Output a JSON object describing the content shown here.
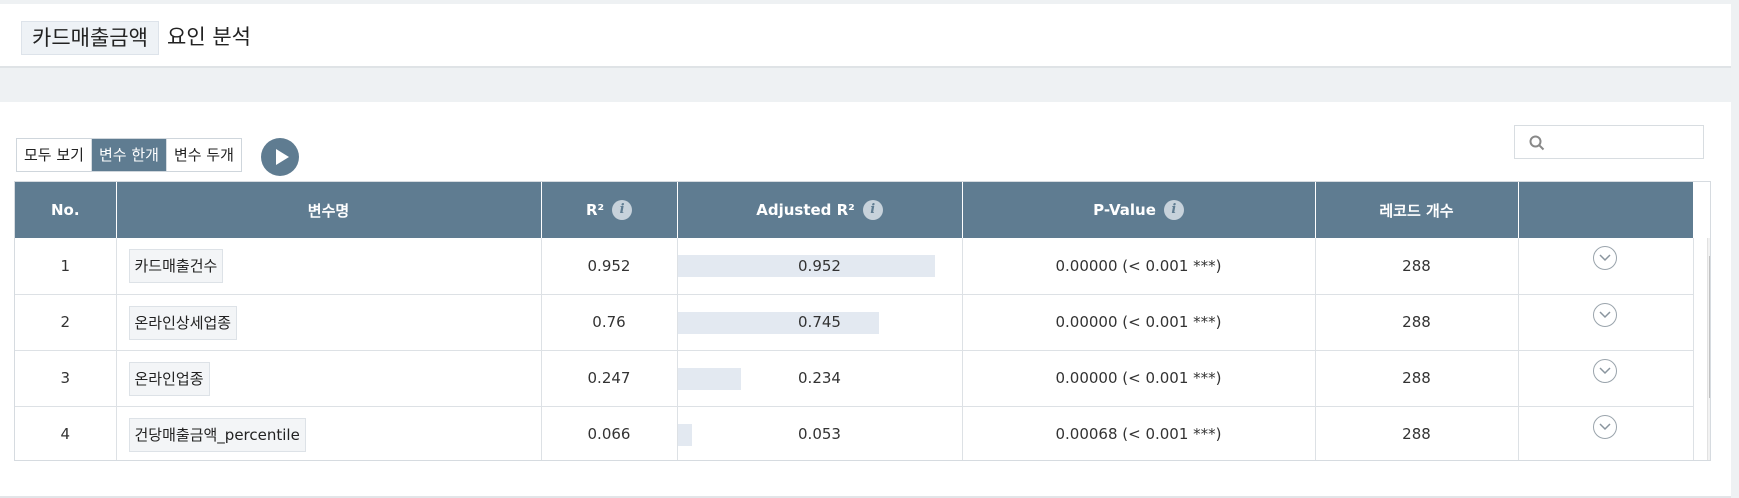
{
  "header": {
    "title_chip": "카드매출금액",
    "title_rest": "요인 분석"
  },
  "toolbar": {
    "segments": [
      {
        "label": "모두 보기",
        "active": false
      },
      {
        "label": "변수 한개",
        "active": true
      },
      {
        "label": "변수 두개",
        "active": false
      }
    ],
    "play_icon": "play-icon"
  },
  "search": {
    "value": "",
    "placeholder": ""
  },
  "table": {
    "headers": {
      "no": "No.",
      "var": "변수명",
      "r2": "R²",
      "adj": "Adjusted R²",
      "pval": "P-Value",
      "count": "레코드 개수"
    },
    "rows": [
      {
        "no": "1",
        "var": "카드매출건수",
        "r2": "0.952",
        "adj": "0.952",
        "adj_value": 0.952,
        "pval": "0.00000 (< 0.001 ***)",
        "count": "288"
      },
      {
        "no": "2",
        "var": "온라인상세업종",
        "r2": "0.76",
        "adj": "0.745",
        "adj_value": 0.745,
        "pval": "0.00000 (< 0.001 ***)",
        "count": "288"
      },
      {
        "no": "3",
        "var": "온라인업종",
        "r2": "0.247",
        "adj": "0.234",
        "adj_value": 0.234,
        "pval": "0.00000 (< 0.001 ***)",
        "count": "288"
      },
      {
        "no": "4",
        "var": "건당매출금액_percentile",
        "r2": "0.066",
        "adj": "0.053",
        "adj_value": 0.053,
        "pval": "0.00068 (< 0.001 ***)",
        "count": "288"
      }
    ]
  },
  "colors": {
    "accent": "#5f7c91",
    "bar": "#e3e9f1"
  }
}
